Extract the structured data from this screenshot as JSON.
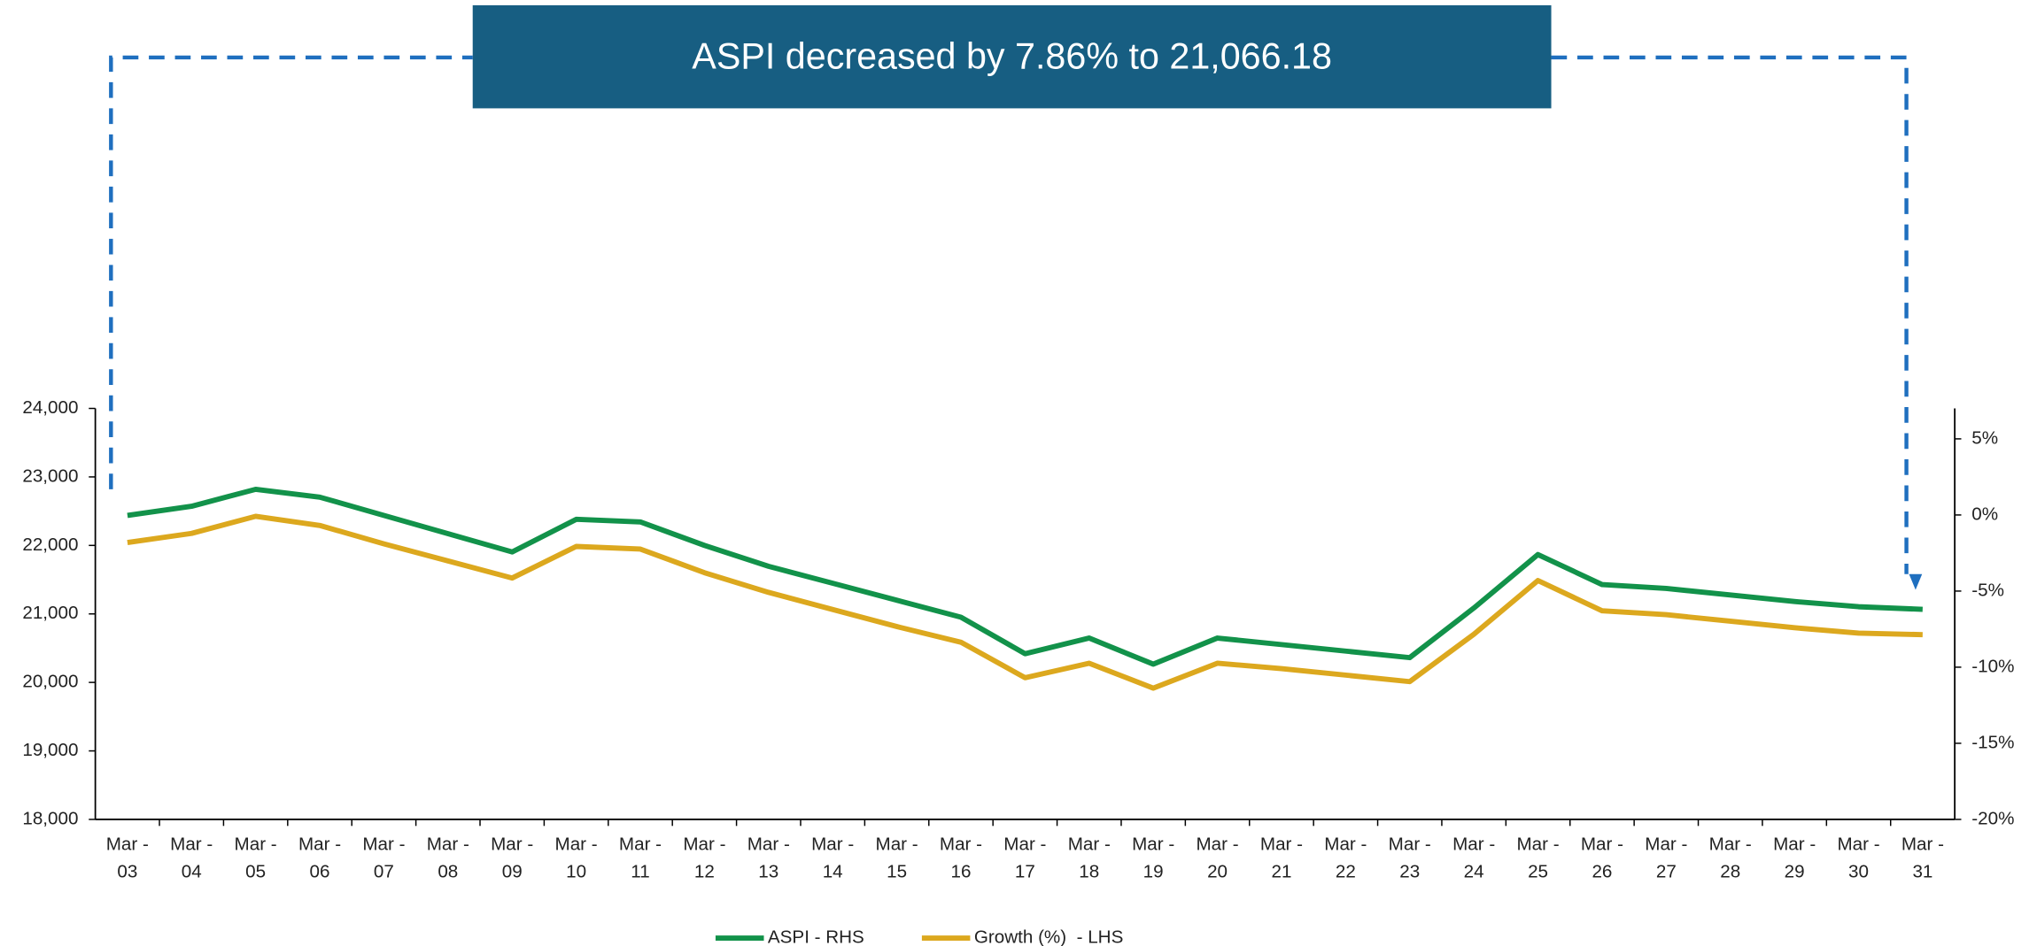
{
  "chart_data": {
    "type": "line",
    "title": "ASPI decreased by 7.86% to 21,066.18",
    "categories": [
      "Mar - 03",
      "Mar - 04",
      "Mar - 05",
      "Mar - 06",
      "Mar - 07",
      "Mar - 08",
      "Mar - 09",
      "Mar - 10",
      "Mar - 11",
      "Mar - 12",
      "Mar - 13",
      "Mar - 14",
      "Mar - 15",
      "Mar - 16",
      "Mar - 17",
      "Mar - 18",
      "Mar - 19",
      "Mar - 20",
      "Mar - 21",
      "Mar - 22",
      "Mar - 23",
      "Mar - 24",
      "Mar - 25",
      "Mar - 26",
      "Mar - 27",
      "Mar - 28",
      "Mar - 29",
      "Mar - 30",
      "Mar - 31"
    ],
    "series": [
      {
        "name": "ASPI - RHS",
        "color": "#12924a",
        "axis": "y",
        "values": [
          22438,
          22571,
          22819,
          22705,
          22438,
          22171,
          21905,
          22381,
          22343,
          22000,
          21695,
          21448,
          21200,
          20952,
          20419,
          20648,
          20267,
          20648,
          20552,
          20457,
          20362,
          21086,
          21867,
          21429,
          21371,
          21276,
          21181,
          21105,
          21066.18
        ]
      },
      {
        "name": "Growth (%)  - LHS",
        "color": "#dca81e",
        "axis": "y2",
        "values": [
          -1.81,
          -1.21,
          -0.09,
          -0.69,
          -1.9,
          -3.02,
          -4.14,
          -2.07,
          -2.24,
          -3.79,
          -5.09,
          -6.21,
          -7.33,
          -8.36,
          -10.69,
          -9.74,
          -11.38,
          -9.74,
          -10.09,
          -10.52,
          -10.95,
          -7.84,
          -4.31,
          -6.29,
          -6.55,
          -6.98,
          -7.41,
          -7.76,
          -7.86
        ]
      }
    ],
    "ylim": [
      18000,
      24000
    ],
    "yticks": [
      {
        "value": 18000,
        "label": "18,000"
      },
      {
        "value": 19000,
        "label": "19,000"
      },
      {
        "value": 20000,
        "label": "20,000"
      },
      {
        "value": 21000,
        "label": "21,000"
      },
      {
        "value": 22000,
        "label": "22,000"
      },
      {
        "value": 23000,
        "label": "23,000"
      },
      {
        "value": 24000,
        "label": "24,000"
      }
    ],
    "y2lim": [
      -20,
      7
    ],
    "y2ticks": [
      {
        "value": -20,
        "label": "-20%"
      },
      {
        "value": -15,
        "label": "-15%"
      },
      {
        "value": -10,
        "label": "-10%"
      },
      {
        "value": -5,
        "label": "-5%"
      },
      {
        "value": 0,
        "label": "0%"
      },
      {
        "value": 5,
        "label": "5%"
      }
    ],
    "grid": false,
    "legend": "bottom"
  }
}
